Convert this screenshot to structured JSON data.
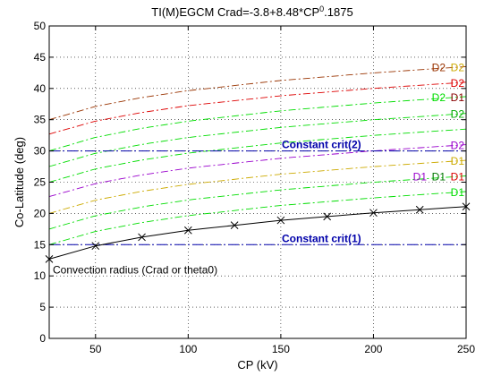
{
  "chart_data": {
    "type": "line",
    "title": "TI(M)EGCM Crad=-3.8+8.48*CP",
    "title_exponent": "0",
    "title_suffix": ".1875",
    "xlabel": "CP (kV)",
    "ylabel": "Co-Latitude (deg)",
    "xlim": [
      25,
      250
    ],
    "ylim": [
      0,
      50
    ],
    "xticks": [
      50,
      100,
      150,
      200,
      250
    ],
    "yticks": [
      0,
      5,
      10,
      15,
      20,
      25,
      30,
      35,
      40,
      45,
      50
    ],
    "grid": true,
    "crad": {
      "name": "Convection radius (Crad or theta0)",
      "color": "#000000",
      "marker": "x",
      "x": [
        25,
        50,
        75,
        100,
        125,
        150,
        175,
        200,
        225,
        250
      ],
      "y": [
        12.7,
        14.8,
        16.2,
        17.3,
        18.1,
        18.9,
        19.5,
        20.1,
        20.6,
        21.1
      ]
    },
    "constant_lines": [
      {
        "label": "Constant crit(1)",
        "y": 15,
        "color": "#0000aa",
        "style": "dashdot"
      },
      {
        "label": "Constant crit(2)",
        "y": 30,
        "color": "#0000aa",
        "style": "dashdot"
      }
    ],
    "curves": [
      {
        "y0": 15.0,
        "y1": 23.5,
        "color": "#00dd00",
        "style": "dashdot",
        "labels": [
          {
            "text": "D1",
            "color": "#00dd00"
          }
        ]
      },
      {
        "y0": 17.5,
        "y1": 26.0,
        "color": "#00dd00",
        "style": "dashdot",
        "labels": [
          {
            "text": "D1",
            "color": "#9900cc"
          },
          {
            "text": "D1",
            "color": "#007700"
          },
          {
            "text": "D1",
            "color": "#dd0000"
          }
        ]
      },
      {
        "y0": 20.0,
        "y1": 28.5,
        "color": "#ccaa00",
        "style": "dashdot",
        "labels": [
          {
            "text": "D1",
            "color": "#ccaa00"
          }
        ]
      },
      {
        "y0": 22.7,
        "y1": 31.0,
        "color": "#9900cc",
        "style": "dashdot",
        "labels": [
          {
            "text": "D2",
            "color": "#9900cc"
          }
        ]
      },
      {
        "y0": 25.0,
        "y1": 33.5,
        "color": "#00dd00",
        "style": "dashdot",
        "labels": []
      },
      {
        "y0": 27.5,
        "y1": 36.0,
        "color": "#00dd00",
        "style": "dashdot",
        "labels": [
          {
            "text": "D2",
            "color": "#00aa00"
          }
        ]
      },
      {
        "y0": 30.0,
        "y1": 38.7,
        "color": "#00dd00",
        "style": "dashdot",
        "labels": [
          {
            "text": "D2",
            "color": "#00dd00"
          },
          {
            "text": "D1",
            "color": "#880000"
          }
        ]
      },
      {
        "y0": 32.7,
        "y1": 41.0,
        "color": "#dd0000",
        "style": "dashdot",
        "labels": [
          {
            "text": "D2",
            "color": "#dd0000"
          }
        ]
      },
      {
        "y0": 35.0,
        "y1": 43.5,
        "color": "#993300",
        "style": "dashdot",
        "labels": [
          {
            "text": "D2",
            "color": "#993300"
          },
          {
            "text": "D2",
            "color": "#ccaa00"
          }
        ]
      }
    ]
  }
}
